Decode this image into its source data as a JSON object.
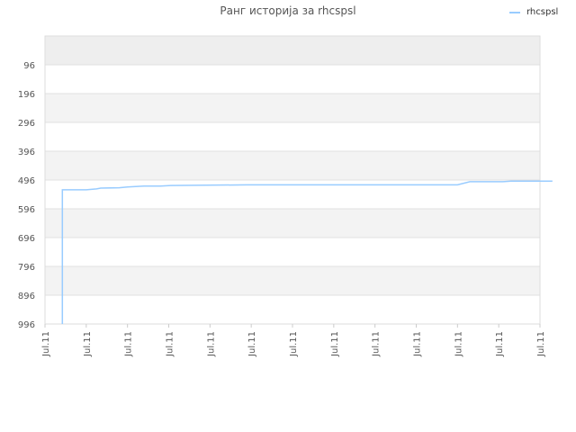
{
  "chart_data": {
    "type": "line",
    "title": "Ранг историја за rhcspsl",
    "xlabel": "",
    "ylabel": "",
    "y_reversed": true,
    "ylim": [
      996,
      0
    ],
    "y_ticks": [
      "96",
      "196",
      "296",
      "396",
      "496",
      "596",
      "696",
      "796",
      "896",
      "996"
    ],
    "x_ticks": [
      "Jul.11",
      "Jul.11",
      "Jul.11",
      "Jul.11",
      "Jul.11",
      "Jul.11",
      "Jul.11",
      "Jul.11",
      "Jul.11",
      "Jul.11",
      "Jul.11",
      "Jul.11",
      "Jul.11"
    ],
    "grid": true,
    "legend_position": "top-right",
    "series": [
      {
        "name": "rhcspsl",
        "color": "#99ccff",
        "x": [
          0.42,
          0.42,
          1.0,
          1.25,
          1.35,
          1.8,
          2.0,
          2.4,
          2.8,
          3.05,
          4.9,
          10.0,
          10.3,
          11.1,
          11.3,
          12.3
        ],
        "y": [
          996,
          530,
          530,
          527,
          524,
          523,
          520,
          517,
          517,
          515,
          513,
          513,
          502,
          502,
          500,
          500
        ]
      }
    ]
  }
}
